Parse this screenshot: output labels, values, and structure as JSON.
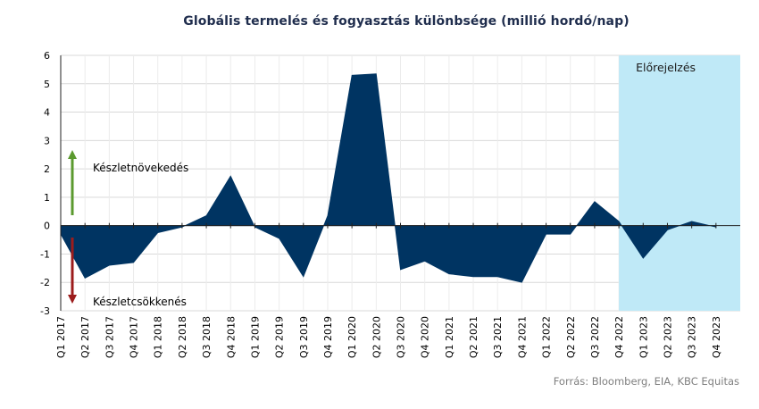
{
  "chart_data": {
    "type": "area",
    "title": "Globális termelés és fogyasztás különbsége (millió hordó/nap)",
    "xlabel": "",
    "ylabel": "",
    "ylim": [
      -3,
      6
    ],
    "yticks": [
      6,
      5,
      4,
      3,
      2,
      1,
      0,
      -1,
      -2,
      -3
    ],
    "grid": true,
    "categories": [
      "Q1 2017",
      "Q2 2017",
      "Q3 2017",
      "Q4 2017",
      "Q1 2018",
      "Q2 2018",
      "Q3 2018",
      "Q4 2018",
      "Q1 2019",
      "Q2 2019",
      "Q3 2019",
      "Q4 2019",
      "Q1 2020",
      "Q2 2020",
      "Q3 2020",
      "Q4 2020",
      "Q1 2021",
      "Q2 2021",
      "Q3 2021",
      "Q4 2021",
      "Q1 2022",
      "Q2 2022",
      "Q3 2022",
      "Q4 2022",
      "Q1 2023",
      "Q2 2023",
      "Q3 2023",
      "Q4 2023"
    ],
    "values": [
      -0.3,
      -1.85,
      -1.4,
      -1.3,
      -0.25,
      -0.05,
      0.35,
      1.75,
      -0.05,
      -0.45,
      -1.8,
      0.35,
      5.3,
      5.35,
      -1.55,
      -1.25,
      -1.7,
      -1.8,
      -1.8,
      -2.0,
      -0.3,
      -0.3,
      0.85,
      0.15,
      -1.15,
      -0.15,
      0.15,
      -0.05
    ],
    "forecast": {
      "label": "Előrejelzés",
      "start_category": "Q4 2022"
    },
    "annotations": {
      "up": "Készletnövekedés",
      "down": "Készletcsökkenés"
    },
    "colors": {
      "area": "#003462",
      "forecast_bg": "#bfe9f7",
      "up_arrow": "#5b9a2f",
      "down_arrow": "#9c1c1c",
      "grid": "#d9d9d9"
    },
    "source": "Forrás: Bloomberg, EIA, KBC Equitas"
  }
}
